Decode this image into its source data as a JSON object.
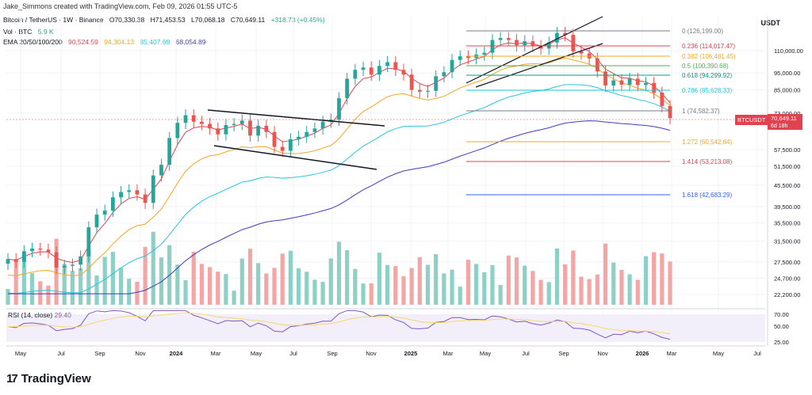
{
  "header": {
    "credit": "Jake_Simmons created with TradingView.com, Feb 09, 2026 01:55 UTC-5",
    "symbol": "Bitcoin / TetherUS · 1W · Binance",
    "ohlc": {
      "o": "O70,330.38",
      "h": "H71,453.53",
      "l": "L70,068.18",
      "c": "C70,649.11",
      "chg": "+318.73 (+0.45%)"
    },
    "vol_label": "Vol · BTC",
    "vol_value": "5.9 K",
    "ema_label": "EMA 20/50/100/200",
    "ema_values": [
      {
        "v": "90,524.59",
        "color": "#e0434f"
      },
      {
        "v": "94,304.13",
        "color": "#f5a623"
      },
      {
        "v": "85,407.69",
        "color": "#26c6da"
      },
      {
        "v": "68,054.89",
        "color": "#3d3dbf"
      }
    ]
  },
  "price_axis": {
    "unit": "USDT",
    "ticks": [
      "110,000.00",
      "95,000.00",
      "85,000.00",
      "73,000.00",
      "57,500.00",
      "51,500.00",
      "45,500.00",
      "39,500.00",
      "35,500.00",
      "31,500.00",
      "27,500.00",
      "24,700.00",
      "22,200.00"
    ],
    "last_symbol": "BTCUSDT",
    "last_price": "70,649.11",
    "last_countdown": "6d 18h"
  },
  "rsi_axis": {
    "ticks": [
      "70.00",
      "50.00",
      "25.00"
    ],
    "label": "RSI (14, close)",
    "value": "29.40"
  },
  "time_axis": [
    "May",
    "Jul",
    "Sep",
    "Nov",
    "2024",
    "Mar",
    "May",
    "Jul",
    "Sep",
    "Nov",
    "2025",
    "Mar",
    "May",
    "Jul",
    "Sep",
    "Nov",
    "2026",
    "Mar",
    "May",
    "Jul"
  ],
  "fib_levels": [
    {
      "label": "0 (126,199.00)",
      "color": "#787b86"
    },
    {
      "label": "0.236 (114,017.47)",
      "color": "#e0434f"
    },
    {
      "label": "0.382 (106,481.45)",
      "color": "#f5a623"
    },
    {
      "label": "0.5 (100,390.68)",
      "color": "#4caf50"
    },
    {
      "label": "0.618 (94,299.92)",
      "color": "#089981"
    },
    {
      "label": "0.786 (85,628.33)",
      "color": "#26c6da"
    },
    {
      "label": "1 (74,582.37)",
      "color": "#787b86"
    },
    {
      "label": "1.272 (60,542.64)",
      "color": "#f5a623"
    },
    {
      "label": "1.414 (53,213.08)",
      "color": "#e0434f"
    },
    {
      "label": "1.618 (42,683.29)",
      "color": "#2962ff"
    }
  ],
  "branding": {
    "logo_text": "TradingView",
    "logo_mark": "17"
  },
  "colors": {
    "up": "#26a69a",
    "down": "#ef5350",
    "vol_up": "#8fd0c6",
    "vol_down": "#f4a6a4",
    "grid": "#f0f3fa"
  },
  "chart_data": {
    "type": "candlestick",
    "close_approx": [
      28000,
      27500,
      29500,
      30000,
      29800,
      29300,
      26500,
      26800,
      27000,
      28500,
      34500,
      37500,
      38500,
      42000,
      43500,
      44000,
      42800,
      40500,
      48500,
      52000,
      62000,
      68500,
      72000,
      69000,
      68000,
      66000,
      63500,
      67500,
      68000,
      69500,
      63000,
      67200,
      64500,
      58500,
      57000,
      61500,
      62500,
      64500,
      66000,
      69000,
      70000,
      80500,
      91500,
      97000,
      98500,
      94000,
      99500,
      102000,
      97000,
      94000,
      85000,
      84000,
      84500,
      93000,
      95500,
      103500,
      106000,
      104800,
      107200,
      108500,
      118000,
      119500,
      118000,
      114000,
      117000,
      113500,
      111500,
      116000,
      123500,
      122000,
      109500,
      108000,
      104500,
      96000,
      87500,
      90500,
      88000,
      91500,
      87800,
      89000,
      83500,
      76500,
      70649
    ],
    "ylim": [
      22200,
      126199
    ],
    "rsi_last": 29.4
  }
}
